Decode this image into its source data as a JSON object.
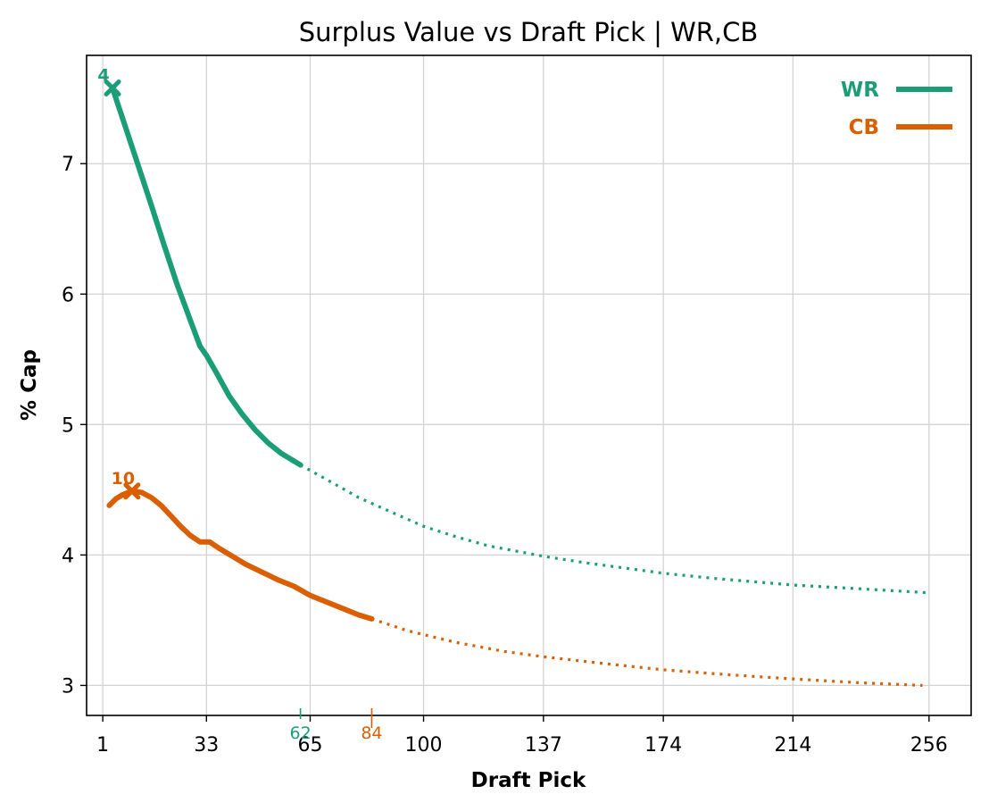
{
  "chart_data": {
    "type": "line",
    "title": "Surplus Value vs Draft Pick | WR,CB",
    "xlabel": "Draft Pick",
    "ylabel": "% Cap",
    "xlim": [
      -4,
      269
    ],
    "ylim": [
      2.77,
      7.83
    ],
    "x_ticks": [
      1,
      33,
      65,
      100,
      137,
      174,
      214,
      256
    ],
    "y_ticks": [
      3,
      4,
      5,
      6,
      7
    ],
    "grid": true,
    "legend_position": "top-right",
    "series": [
      {
        "name": "WR",
        "color": "#1b9e77",
        "peak_pick": 4,
        "peak_label": "4",
        "cutoff_pick": 62,
        "cutoff_label": "62",
        "points": [
          [
            4,
            7.58
          ],
          [
            8,
            7.28
          ],
          [
            12,
            6.98
          ],
          [
            16,
            6.68
          ],
          [
            20,
            6.37
          ],
          [
            24,
            6.07
          ],
          [
            28,
            5.8
          ],
          [
            31,
            5.6
          ],
          [
            33,
            5.53
          ],
          [
            36,
            5.4
          ],
          [
            40,
            5.22
          ],
          [
            44,
            5.08
          ],
          [
            48,
            4.96
          ],
          [
            52,
            4.86
          ],
          [
            56,
            4.78
          ],
          [
            62,
            4.69
          ],
          [
            70,
            4.58
          ],
          [
            80,
            4.44
          ],
          [
            90,
            4.33
          ],
          [
            100,
            4.22
          ],
          [
            110,
            4.14
          ],
          [
            120,
            4.07
          ],
          [
            137,
            3.99
          ],
          [
            150,
            3.94
          ],
          [
            174,
            3.86
          ],
          [
            190,
            3.82
          ],
          [
            214,
            3.77
          ],
          [
            235,
            3.74
          ],
          [
            256,
            3.71
          ]
        ]
      },
      {
        "name": "CB",
        "color": "#d95f02",
        "peak_pick": 10,
        "peak_label": "10",
        "cutoff_pick": 84,
        "cutoff_label": "84",
        "points": [
          [
            3,
            4.38
          ],
          [
            5,
            4.43
          ],
          [
            7,
            4.46
          ],
          [
            10,
            4.49
          ],
          [
            13,
            4.48
          ],
          [
            16,
            4.44
          ],
          [
            19,
            4.38
          ],
          [
            22,
            4.3
          ],
          [
            25,
            4.22
          ],
          [
            28,
            4.15
          ],
          [
            31,
            4.1
          ],
          [
            34,
            4.1
          ],
          [
            37,
            4.05
          ],
          [
            41,
            3.99
          ],
          [
            45,
            3.93
          ],
          [
            50,
            3.87
          ],
          [
            55,
            3.81
          ],
          [
            60,
            3.76
          ],
          [
            65,
            3.69
          ],
          [
            70,
            3.64
          ],
          [
            75,
            3.59
          ],
          [
            80,
            3.54
          ],
          [
            84,
            3.51
          ],
          [
            95,
            3.42
          ],
          [
            100,
            3.39
          ],
          [
            110,
            3.33
          ],
          [
            125,
            3.26
          ],
          [
            137,
            3.22
          ],
          [
            155,
            3.17
          ],
          [
            174,
            3.12
          ],
          [
            195,
            3.08
          ],
          [
            214,
            3.05
          ],
          [
            235,
            3.02
          ],
          [
            254,
            3.0
          ]
        ]
      }
    ]
  }
}
